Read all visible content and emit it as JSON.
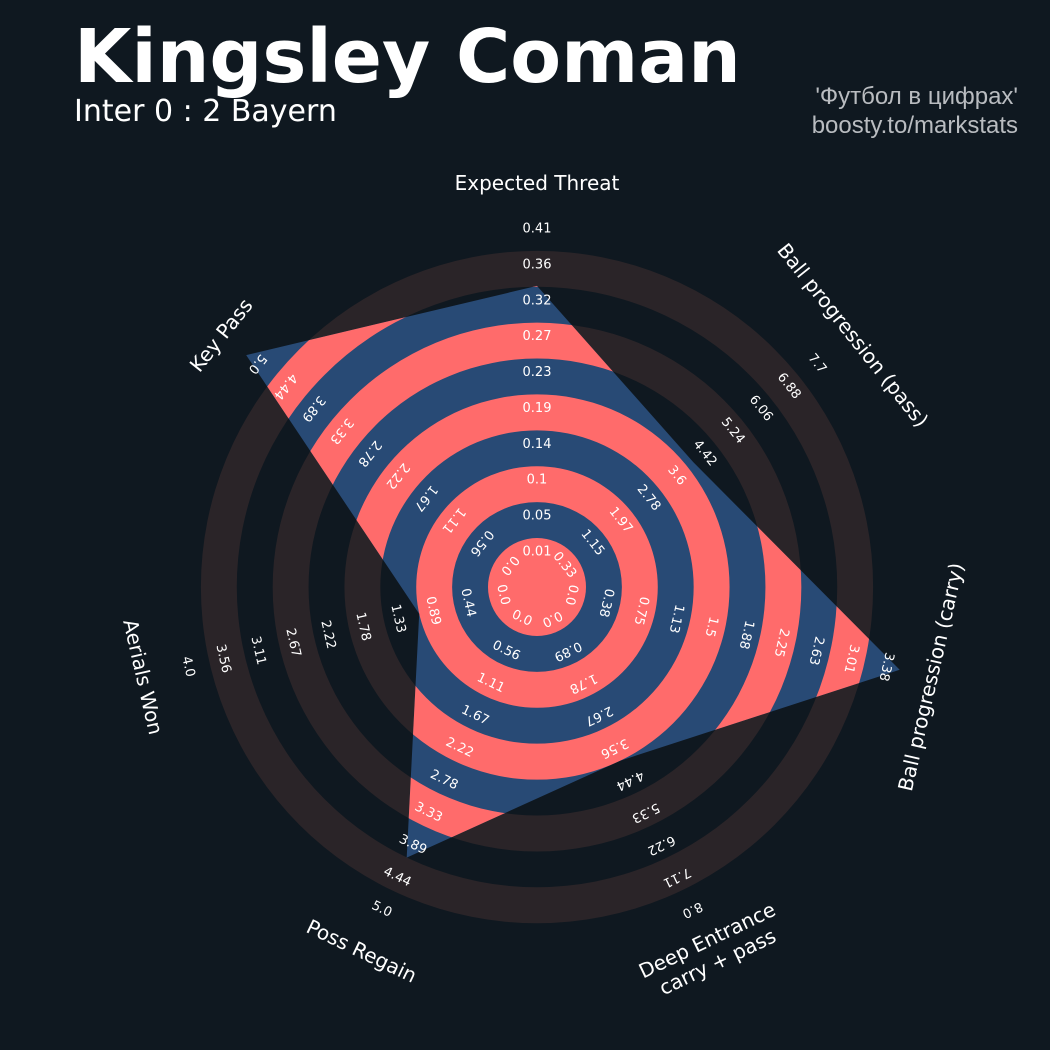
{
  "header": {
    "title": "Kingsley Coman",
    "subtitle": "Inter 0 : 2 Bayern",
    "credit_line1": "'Футбол в цифрах'",
    "credit_line2": "boosty.to/markstats"
  },
  "colors": {
    "background": "#0f1820",
    "ring_dark": "#2a2428",
    "ring_accent": "#ff6b6b",
    "player_fill": "#284a75",
    "text": "#ffffff",
    "credit_text": "#b9bcc0"
  },
  "chart_data": {
    "type": "radar",
    "title": "Kingsley Coman",
    "subtitle": "Inter 0 : 2 Bayern",
    "parameters": [
      {
        "label": "Expected Threat",
        "min": 0.0,
        "max": 0.41,
        "value": 0.32,
        "ticks": [
          "0.01",
          "0.05",
          "0.1",
          "0.14",
          "0.19",
          "0.23",
          "0.27",
          "0.32",
          "0.36",
          "0.41"
        ]
      },
      {
        "label": "Ball progression (pass)",
        "min": 0.0,
        "max": 7.7,
        "value": 3.6,
        "ticks": [
          "0.33",
          "1.15",
          "1.97",
          "2.78",
          "3.6",
          "4.42",
          "5.24",
          "6.06",
          "6.88",
          "7.7"
        ]
      },
      {
        "label": "Ball progression (carry)",
        "min": 0.0,
        "max": 3.38,
        "value": 3.38,
        "ticks": [
          "0.38",
          "0.75",
          "1.13",
          "1.5",
          "1.88",
          "2.25",
          "2.63",
          "3.01",
          "3.38"
        ]
      },
      {
        "label": "Deep Entrance\ncarry + pass",
        "min": 0.0,
        "max": 8.0,
        "value": 3.56,
        "ticks": [
          "0.89",
          "1.78",
          "2.67",
          "3.56",
          "4.44",
          "5.33",
          "6.22",
          "7.11",
          "8.0"
        ]
      },
      {
        "label": "Poss Regain",
        "min": 0.0,
        "max": 5.0,
        "value": 3.89,
        "ticks": [
          "0.56",
          "1.11",
          "1.67",
          "2.22",
          "2.78",
          "3.33",
          "3.89",
          "4.44",
          "5.0"
        ]
      },
      {
        "label": "Aerials Won",
        "min": 0.0,
        "max": 4.0,
        "value": 0.89,
        "ticks": [
          "0.44",
          "0.89",
          "1.33",
          "1.78",
          "2.22",
          "2.67",
          "3.11",
          "3.56",
          "4.0"
        ]
      },
      {
        "label": "Key Pass",
        "min": 0.0,
        "max": 5.0,
        "value": 5.0,
        "ticks": [
          "0.56",
          "1.11",
          "1.67",
          "2.22",
          "2.78",
          "3.33",
          "3.89",
          "4.44",
          "5.0"
        ]
      }
    ]
  }
}
